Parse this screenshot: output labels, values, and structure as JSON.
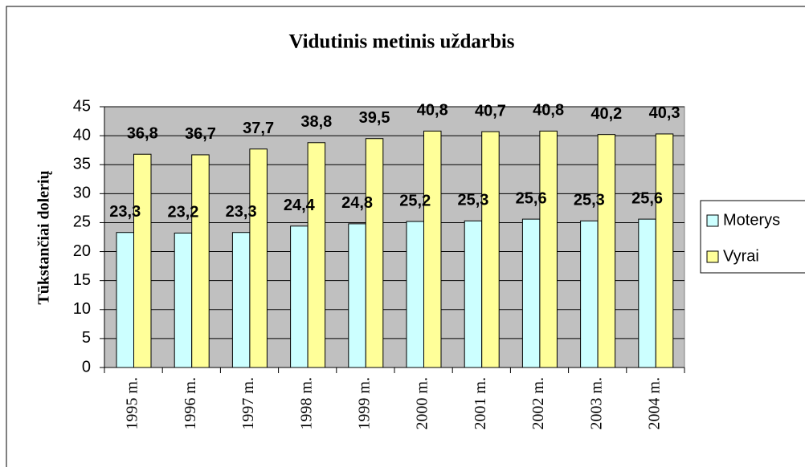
{
  "chart_data": {
    "type": "bar",
    "title": "Vidutinis metinis uždarbis",
    "y_label": "Tūkstančiai dolerių",
    "categories": [
      "1995 m.",
      "1996 m.",
      "1997 m.",
      "1998 m.",
      "1999 m.",
      "2000 m.",
      "2001 m.",
      "2002 m.",
      "2003 m.",
      "2004 m."
    ],
    "series": [
      {
        "name": "Moterys",
        "color": "#ccffff",
        "values": [
          23.3,
          23.2,
          23.3,
          24.4,
          24.8,
          25.2,
          25.3,
          25.6,
          25.3,
          25.6
        ],
        "value_labels": [
          "23,3",
          "23,2",
          "23,3",
          "24,4",
          "24,8",
          "25,2",
          "25,3",
          "25,6",
          "25,3",
          "25,6"
        ]
      },
      {
        "name": "Vyrai",
        "color": "#ffff99",
        "values": [
          36.8,
          36.7,
          37.7,
          38.8,
          39.5,
          40.8,
          40.7,
          40.8,
          40.2,
          40.3
        ],
        "value_labels": [
          "36,8",
          "36,7",
          "37,7",
          "38,8",
          "39,5",
          "40,8",
          "40,7",
          "40,8",
          "40,2",
          "40,3"
        ]
      }
    ],
    "ylim": [
      0,
      45
    ],
    "yticks": [
      0,
      5,
      10,
      15,
      20,
      25,
      30,
      35,
      40,
      45
    ],
    "grid": true,
    "legend": "right",
    "plot_background": "#c0c0c0"
  }
}
